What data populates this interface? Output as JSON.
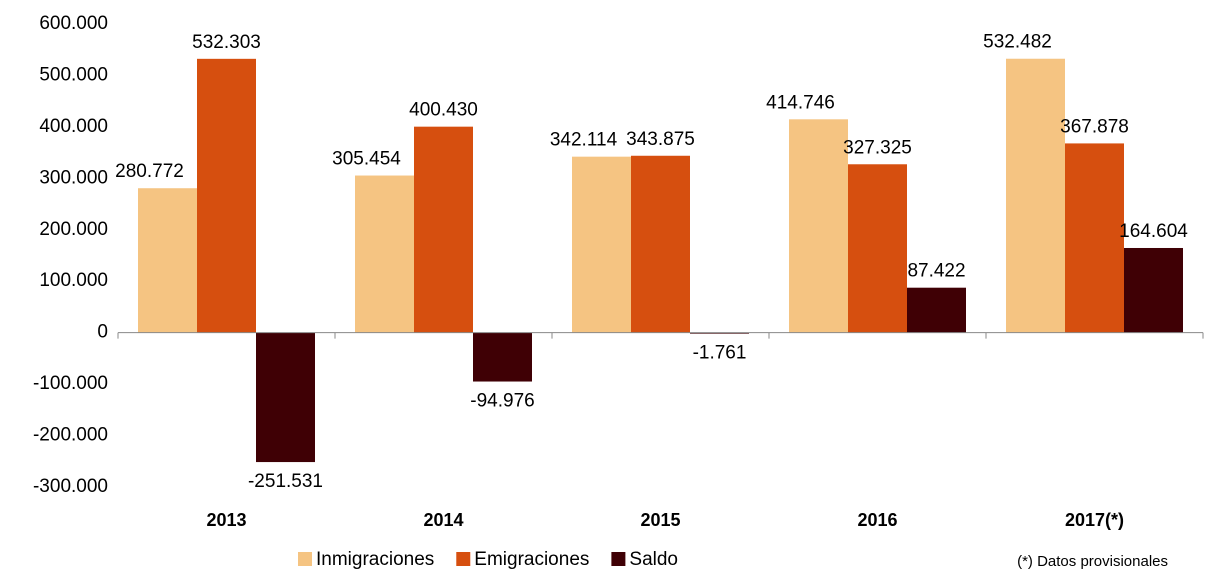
{
  "chart_data": {
    "type": "bar",
    "categories": [
      "2013",
      "2014",
      "2015",
      "2016",
      "2017(*)"
    ],
    "series": [
      {
        "name": "Inmigraciones",
        "color": "#f5c482",
        "values": [
          280772,
          305454,
          342114,
          414746,
          532482
        ],
        "value_labels": [
          "280.772",
          "305.454",
          "342.114",
          "414.746",
          "532.482"
        ]
      },
      {
        "name": "Emigraciones",
        "color": "#d64f0f",
        "values": [
          532303,
          400430,
          343875,
          327325,
          367878
        ],
        "value_labels": [
          "532.303",
          "400.430",
          "343.875",
          "327.325",
          "367.878"
        ]
      },
      {
        "name": "Saldo",
        "color": "#3f0005",
        "values": [
          -251531,
          -94976,
          -1761,
          87422,
          164604
        ],
        "value_labels": [
          "-251.531",
          "-94.976",
          "-1.761",
          "87.422",
          "164.604"
        ]
      }
    ],
    "ylim": [
      -300000,
      600000
    ],
    "yticks": [
      {
        "value": 600000,
        "label": "600.000"
      },
      {
        "value": 500000,
        "label": "500.000"
      },
      {
        "value": 400000,
        "label": "400.000"
      },
      {
        "value": 300000,
        "label": "300.000"
      },
      {
        "value": 200000,
        "label": "200.000"
      },
      {
        "value": 100000,
        "label": "100.000"
      },
      0,
      {
        "value": -100000,
        "label": "-100.000"
      },
      {
        "value": -200000,
        "label": "-200.000"
      },
      {
        "value": -300000,
        "label": "-300.000"
      }
    ],
    "legend": "bottom",
    "annotation": "(*) Datos provisionales"
  }
}
